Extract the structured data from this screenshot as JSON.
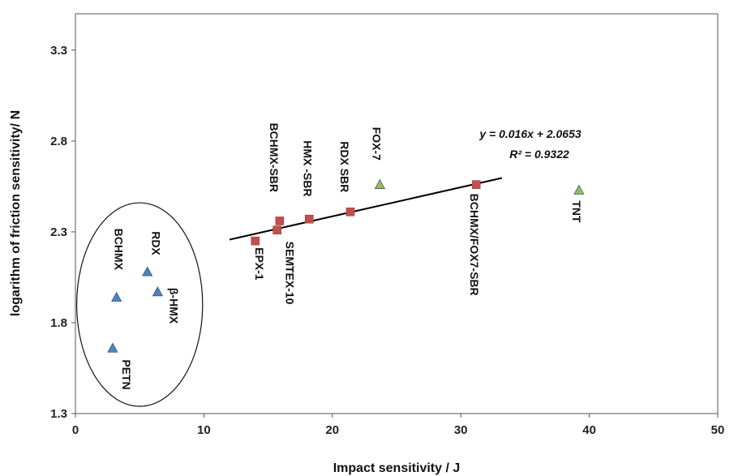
{
  "chart_data": {
    "type": "scatter",
    "xlabel": "Impact sensitivity / J",
    "ylabel": "logarithm of friction sensitivity/ N",
    "xlim": [
      0,
      50
    ],
    "ylim": [
      1.3,
      3.5
    ],
    "xticks": [
      0,
      10,
      20,
      30,
      40,
      50
    ],
    "yticks": [
      1.3,
      1.8,
      2.3,
      2.8,
      3.3
    ],
    "xtick_labels": [
      "0",
      "10",
      "20",
      "30",
      "40",
      "50"
    ],
    "ytick_labels": [
      "1.3",
      "1.8",
      "2.3",
      "2.8",
      "3.3"
    ],
    "grid": false,
    "series": [
      {
        "marker": "triangle",
        "color": "#4f81bd",
        "points": [
          {
            "label": "BCHMX",
            "x": 3.2,
            "y": 1.94
          },
          {
            "label": "RDX",
            "x": 5.6,
            "y": 2.08
          },
          {
            "label": "β-HMX",
            "x": 6.4,
            "y": 1.97
          },
          {
            "label": "PETN",
            "x": 2.9,
            "y": 1.66
          }
        ]
      },
      {
        "marker": "square",
        "color": "#c0504d",
        "points": [
          {
            "label": "EPX-1",
            "x": 14.0,
            "y": 2.25
          },
          {
            "label": "SEMTEX-10",
            "x": 15.7,
            "y": 2.31
          },
          {
            "label": "BCHMX-SBR",
            "x": 15.9,
            "y": 2.36
          },
          {
            "label": "HMX -SBR",
            "x": 18.2,
            "y": 2.37
          },
          {
            "label": "RDX SBR",
            "x": 21.4,
            "y": 2.41
          },
          {
            "label": "BCHMX/FOX7-SBR",
            "x": 31.2,
            "y": 2.56
          }
        ]
      },
      {
        "marker": "triangle",
        "color": "#9bbb59",
        "points": [
          {
            "label": "FOX-7",
            "x": 23.7,
            "y": 2.56
          },
          {
            "label": "TNT",
            "x": 39.2,
            "y": 2.53
          }
        ]
      }
    ],
    "trendline": {
      "slope": 0.016,
      "intercept": 2.0653,
      "x_range": [
        12,
        33.2
      ],
      "equation": "y = 0.016x + 2.0653",
      "r2": "R² = 0.9322"
    },
    "annotations": {
      "ellipse": {
        "cx": 5.0,
        "cy": 1.9,
        "rx": 4.9,
        "ry": 0.56
      }
    }
  }
}
